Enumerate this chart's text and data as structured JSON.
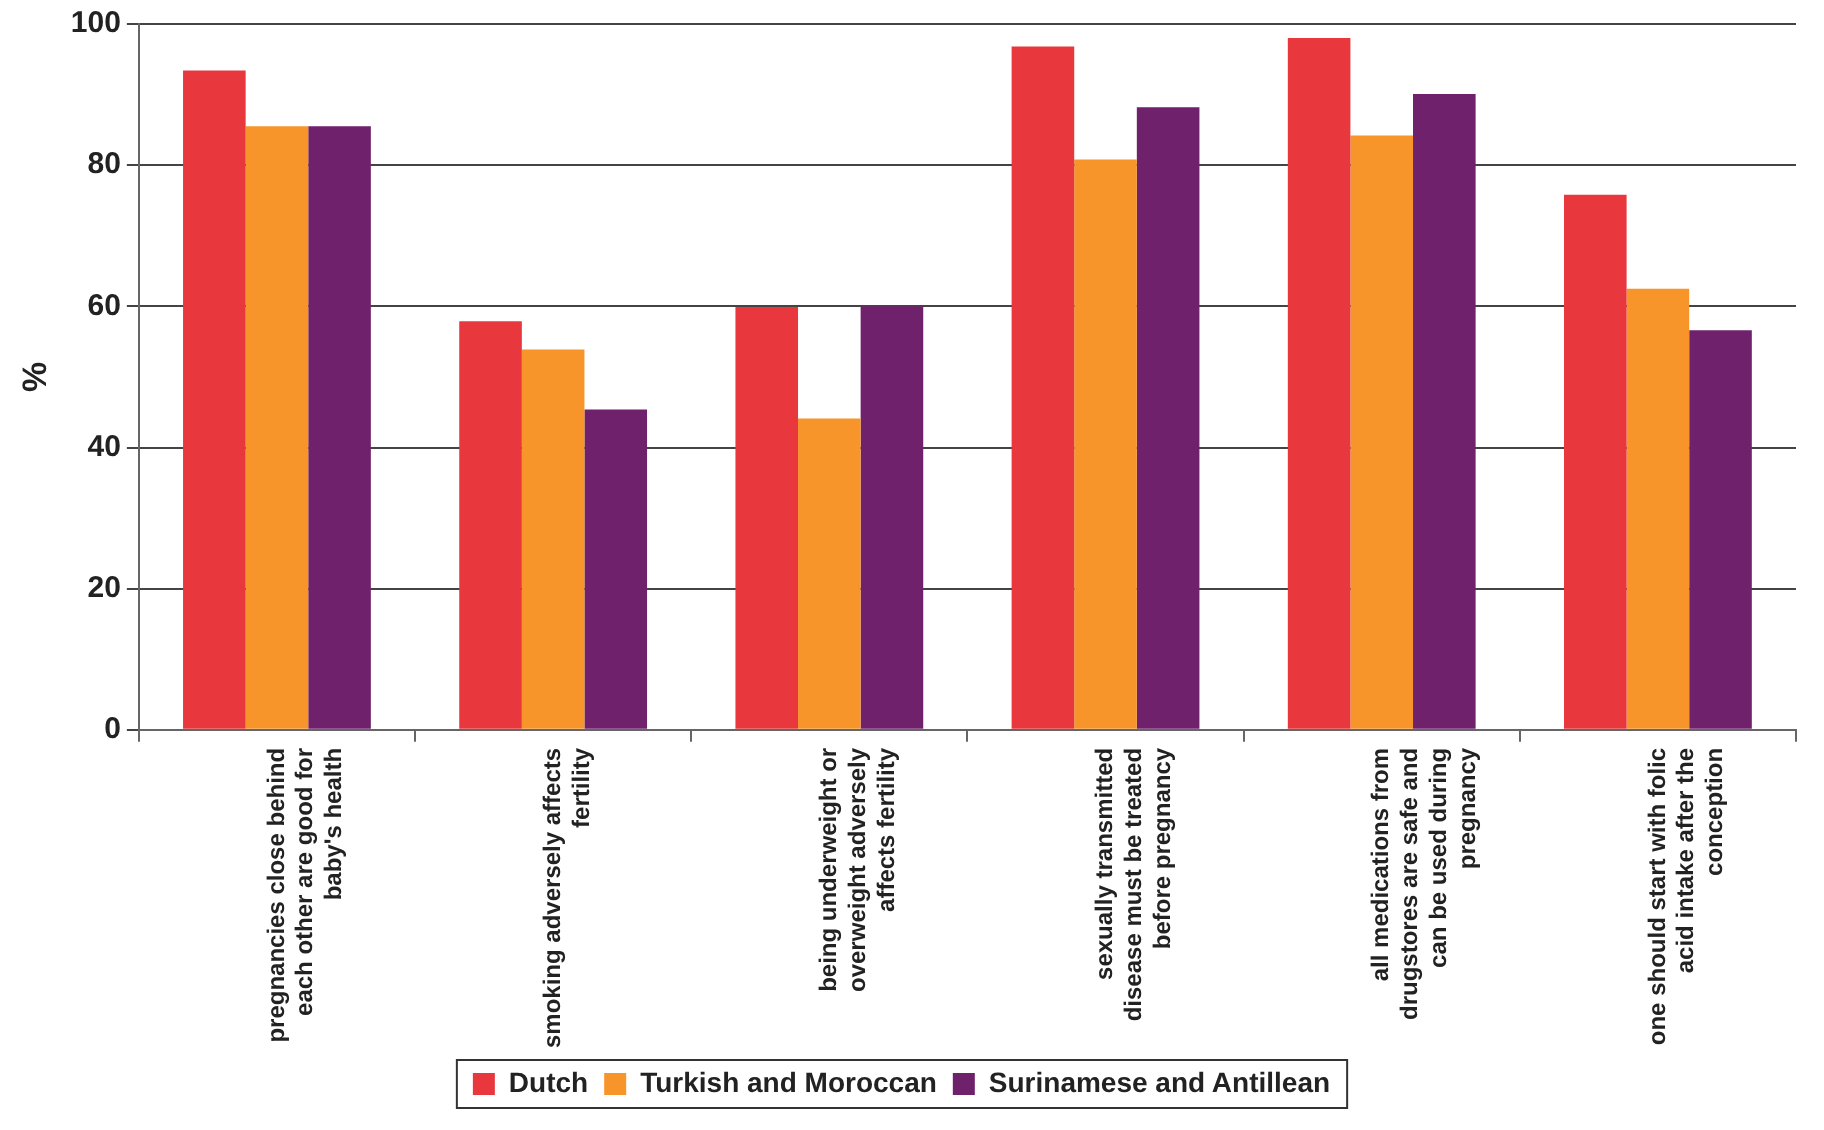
{
  "chart_data": {
    "type": "bar",
    "ylabel": "%",
    "categories": [
      "pregnancies close behind each other are good for baby's health",
      "smoking adversely affects fertility",
      "being underweight or overweight adversely affects fertility",
      "sexually transmitted disease must be treated before pregnancy",
      "all medications from drugstores are safe and can be used during pregnancy",
      "one should start with folic acid intake after the conception"
    ],
    "series": [
      {
        "name": "Dutch",
        "color": "#e8383d",
        "values": [
          93.4,
          57.9,
          59.9,
          96.8,
          98.0,
          75.8
        ]
      },
      {
        "name": "Turkish and Moroccan",
        "color": "#f7952b",
        "values": [
          85.5,
          53.9,
          44.1,
          80.8,
          84.2,
          62.5
        ]
      },
      {
        "name": "Surinamese and Antillean",
        "color": "#6f216c",
        "values": [
          85.5,
          45.4,
          60.0,
          88.2,
          90.1,
          56.6
        ]
      }
    ],
    "ylim": [
      0,
      100
    ],
    "yticks": [
      0,
      20,
      40,
      60,
      80,
      100
    ],
    "grid": "y",
    "legend": "bottom"
  }
}
